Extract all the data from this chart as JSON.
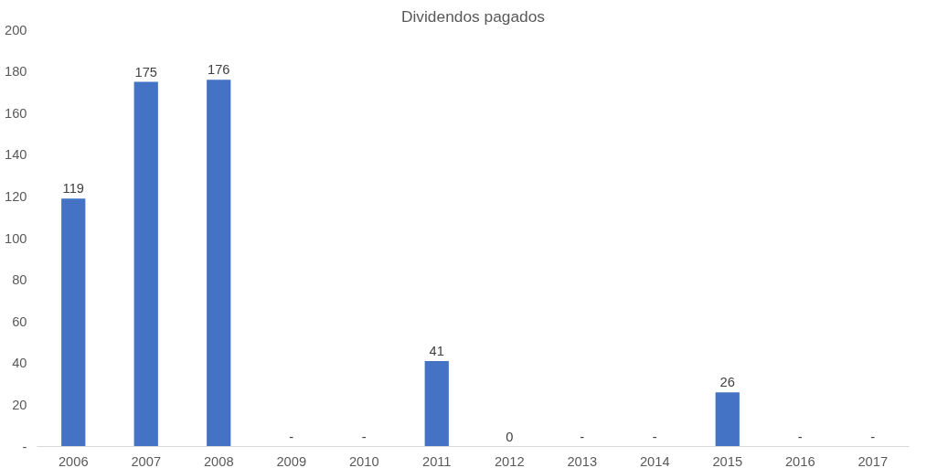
{
  "chart_data": {
    "type": "bar",
    "title": "Dividendos pagados",
    "categories": [
      "2006",
      "2007",
      "2008",
      "2009",
      "2010",
      "2011",
      "2012",
      "2013",
      "2014",
      "2015",
      "2016",
      "2017"
    ],
    "values": [
      119,
      175,
      176,
      0,
      0,
      41,
      0,
      0,
      0,
      26,
      0,
      0
    ],
    "value_labels": [
      "119",
      "175",
      "176",
      "-",
      "-",
      "41",
      "0",
      "-",
      "-",
      "26",
      "-",
      "-"
    ],
    "color": "#4472c4",
    "ylim": [
      0,
      200
    ],
    "yticks": [
      {
        "value": 0,
        "label": "-"
      },
      20,
      40,
      60,
      80,
      100,
      120,
      140,
      160,
      180,
      200
    ],
    "grid": false
  }
}
